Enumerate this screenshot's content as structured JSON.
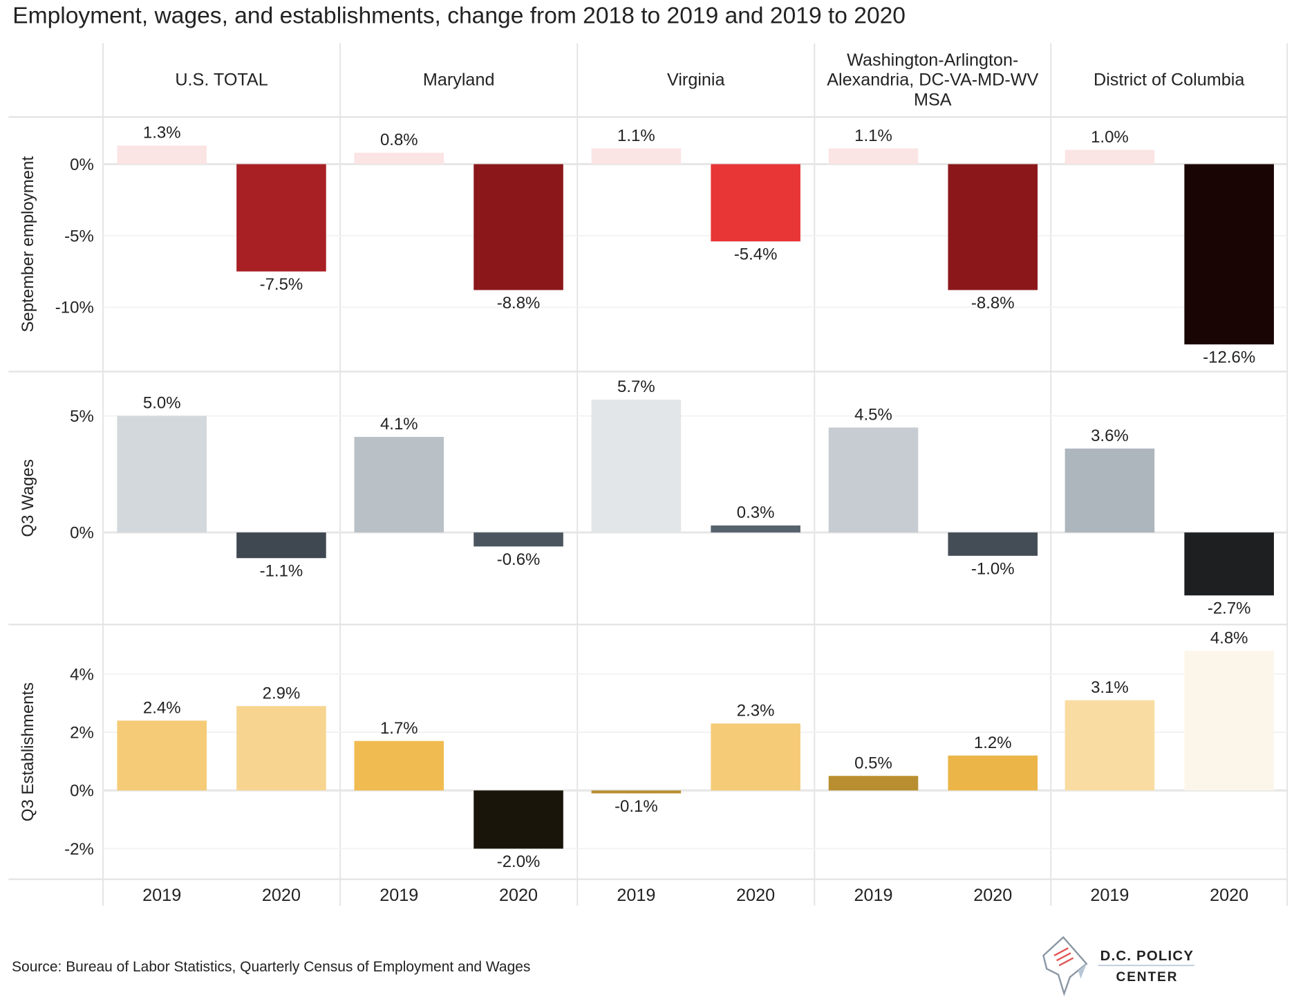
{
  "chart_data": {
    "type": "bar",
    "title": "Employment, wages, and establishments, change from 2018 to 2019 and 2019  to 2020",
    "source": "Source: Bureau of Labor Statistics, Quarterly Census of Employment and Wages",
    "logo": {
      "line1": "D.C. POLICY",
      "line2": "CENTER"
    },
    "regions": [
      "U.S. TOTAL",
      "Maryland",
      "Virginia",
      "Washington-Arlington-|Alexandria, DC-VA-MD-WV|MSA",
      "District of Columbia"
    ],
    "categories": [
      "2019",
      "2020"
    ],
    "rows": [
      {
        "name": "September employment",
        "yticks": [
          0,
          -5,
          -10
        ],
        "tick_labels": [
          "0%",
          "-5%",
          "-10%"
        ],
        "ylim": [
          -14.5,
          3.3
        ],
        "values": [
          [
            1.3,
            -7.5
          ],
          [
            0.8,
            -8.8
          ],
          [
            1.1,
            -5.4
          ],
          [
            1.1,
            -8.8
          ],
          [
            1.0,
            -12.6
          ]
        ],
        "labels": [
          [
            "1.3%",
            "-7.5%"
          ],
          [
            "0.8%",
            "-8.8%"
          ],
          [
            "1.1%",
            "-5.4%"
          ],
          [
            "1.1%",
            "-8.8%"
          ],
          [
            "1.0%",
            "-12.6%"
          ]
        ],
        "colors": [
          [
            "#fbe4e4",
            "#a81f24"
          ],
          [
            "#fbe4e4",
            "#8b171b"
          ],
          [
            "#fbe4e4",
            "#e83535"
          ],
          [
            "#fbe4e4",
            "#8b171b"
          ],
          [
            "#fbe4e4",
            "#1a0505"
          ]
        ]
      },
      {
        "name": "Q3 Wages",
        "yticks": [
          0,
          5
        ],
        "tick_labels": [
          "0%",
          "5%"
        ],
        "ylim": [
          -3.95,
          6.9
        ],
        "values": [
          [
            5.0,
            -1.1
          ],
          [
            4.1,
            -0.6
          ],
          [
            5.7,
            0.3
          ],
          [
            4.5,
            -1.0
          ],
          [
            3.6,
            -2.7
          ]
        ],
        "labels": [
          [
            "5.0%",
            "-1.1%"
          ],
          [
            "4.1%",
            "-0.6%"
          ],
          [
            "5.7%",
            "0.3%"
          ],
          [
            "4.5%",
            "-1.0%"
          ],
          [
            "3.6%",
            "-2.7%"
          ]
        ],
        "colors": [
          [
            "#d3d8dc",
            "#3f4750"
          ],
          [
            "#b9c1c7",
            "#4a5560"
          ],
          [
            "#e2e6e9",
            "#56626c"
          ],
          [
            "#c7ccd2",
            "#444d56"
          ],
          [
            "#adb5bd",
            "#1d1f21"
          ]
        ]
      },
      {
        "name": "Q3 Establishments",
        "yticks": [
          -2,
          0,
          2,
          4
        ],
        "tick_labels": [
          "-2%",
          "0%",
          "2%",
          "4%"
        ],
        "ylim": [
          -3.05,
          5.7
        ],
        "values": [
          [
            2.4,
            2.9
          ],
          [
            1.7,
            -2.0
          ],
          [
            -0.1,
            2.3
          ],
          [
            0.5,
            1.2
          ],
          [
            3.1,
            4.8
          ]
        ],
        "labels": [
          [
            "2.4%",
            "2.9%"
          ],
          [
            "1.7%",
            "-2.0%"
          ],
          [
            "-0.1%",
            "2.3%"
          ],
          [
            "0.5%",
            "1.2%"
          ],
          [
            "3.1%",
            "4.8%"
          ]
        ],
        "colors": [
          [
            "#f5cb78",
            "#f7d591"
          ],
          [
            "#f0bb50",
            "#1a150a"
          ],
          [
            "#b88e30",
            "#f5cb78"
          ],
          [
            "#b88e30",
            "#ebb548"
          ],
          [
            "#f9dca2",
            "#fcf6ea"
          ]
        ]
      }
    ]
  }
}
